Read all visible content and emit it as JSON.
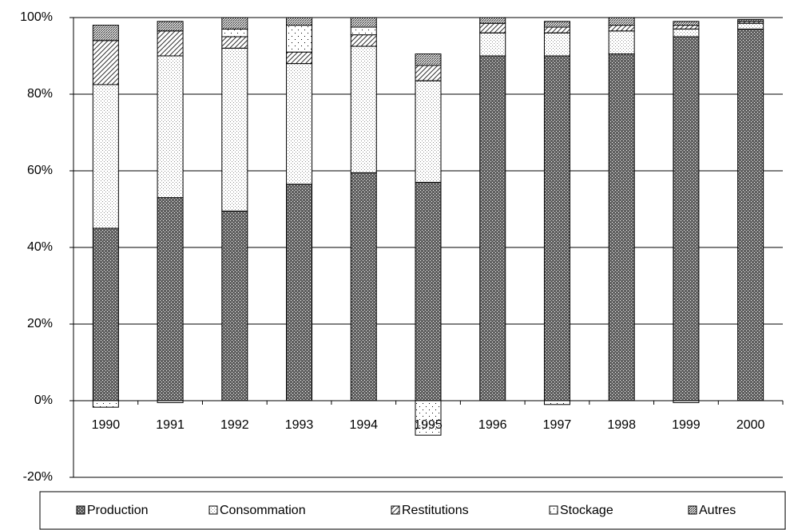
{
  "chart_data": {
    "type": "stacked_bar",
    "categories": [
      "1990",
      "1991",
      "1992",
      "1993",
      "1994",
      "1995",
      "1996",
      "1997",
      "1998",
      "1999",
      "2000"
    ],
    "series": [
      {
        "name": "Production",
        "color": "#606060",
        "values": [
          45,
          53,
          49.5,
          56.5,
          59.5,
          57,
          90,
          90,
          90.5,
          95,
          97
        ]
      },
      {
        "name": "Consommation",
        "color": "#909090",
        "values": [
          37.5,
          37,
          42.5,
          31.5,
          33,
          26.5,
          6,
          6,
          6,
          2,
          1.5
        ]
      },
      {
        "name": "Restitutions",
        "color": "#303030",
        "values": [
          11.5,
          6.5,
          3,
          3,
          3,
          4,
          2.5,
          1.5,
          1.5,
          1,
          0.5
        ]
      },
      {
        "name": "Stockage",
        "color": "#000000",
        "values": [
          -1.7,
          -0.5,
          2,
          7,
          2,
          -9,
          0,
          -1,
          0,
          -0.5,
          0
        ]
      },
      {
        "name": "Autres",
        "color": "#404040",
        "values": [
          4,
          2.5,
          3,
          2,
          2.5,
          3,
          1.5,
          1.5,
          2,
          1,
          0.5
        ]
      }
    ],
    "ylim": [
      -20,
      100
    ],
    "yticks": [
      {
        "value": -20,
        "label": "-20%"
      },
      {
        "value": 0,
        "label": "0%"
      },
      {
        "value": 20,
        "label": "20%"
      },
      {
        "value": 40,
        "label": "40%"
      },
      {
        "value": 60,
        "label": "60%"
      },
      {
        "value": 80,
        "label": "80%"
      },
      {
        "value": 100,
        "label": "100%"
      }
    ],
    "grid": true,
    "legend": "bottom"
  }
}
